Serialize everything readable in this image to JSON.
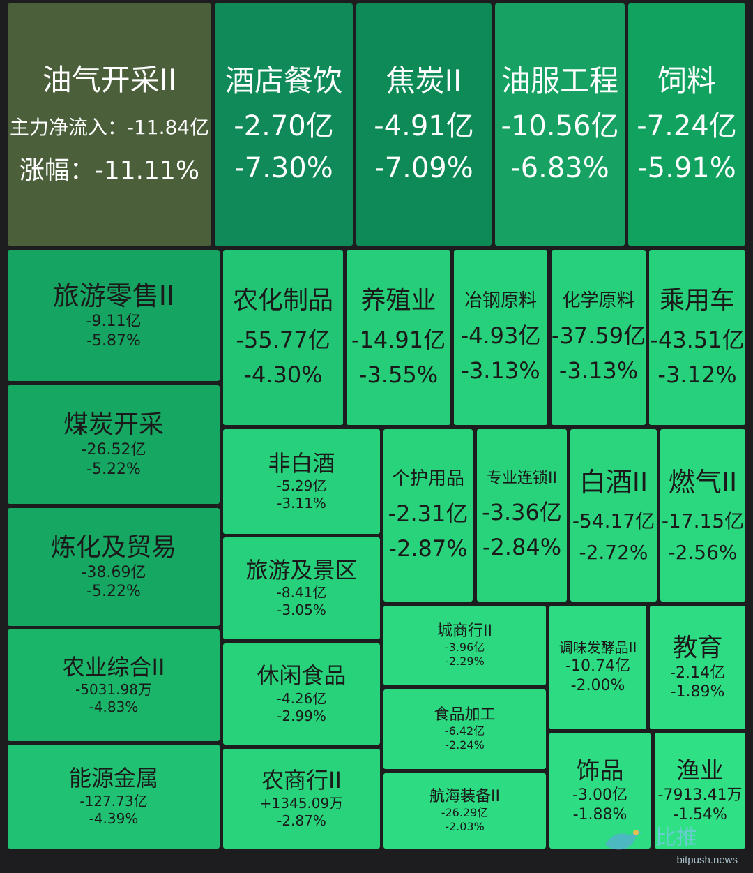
{
  "chart_data": {
    "type": "treemap",
    "cells": [
      {
        "name": "油气开采II",
        "flow_prefix": "主力净流入：",
        "flow": "-11.84亿",
        "change_prefix": "涨幅：",
        "change": "-11.11%",
        "color": "#4a5f3a"
      },
      {
        "name": "酒店餐饮",
        "flow": "-2.70亿",
        "change": "-7.30%",
        "color": "#0f8a58"
      },
      {
        "name": "焦炭II",
        "flow": "-4.91亿",
        "change": "-7.09%",
        "color": "#0e8a57"
      },
      {
        "name": "油服工程",
        "flow": "-10.56亿",
        "change": "-6.83%",
        "color": "#17a163"
      },
      {
        "name": "饲料",
        "flow": "-7.24亿",
        "change": "-5.91%",
        "color": "#12a260"
      },
      {
        "name": "旅游零售II",
        "flow": "-9.11亿",
        "change": "-5.87%",
        "color": "#15a461"
      },
      {
        "name": "农化制品",
        "flow": "-55.77亿",
        "change": "-4.30%",
        "color": "#22c574"
      },
      {
        "name": "养殖业",
        "flow": "-14.91亿",
        "change": "-3.55%",
        "color": "#26ce79"
      },
      {
        "name": "冶钢原料",
        "flow": "-4.93亿",
        "change": "-3.13%",
        "color": "#27d17b"
      },
      {
        "name": "化学原料",
        "flow": "-37.59亿",
        "change": "-3.13%",
        "color": "#27d17b"
      },
      {
        "name": "乘用车",
        "flow": "-43.51亿",
        "change": "-3.12%",
        "color": "#27d17b"
      },
      {
        "name": "煤炭开采",
        "flow": "-26.52亿",
        "change": "-5.22%",
        "color": "#16a763"
      },
      {
        "name": "非白酒",
        "flow": "-5.29亿",
        "change": "-3.11%",
        "color": "#27d17b"
      },
      {
        "name": "个护用品",
        "flow": "-2.31亿",
        "change": "-2.87%",
        "color": "#29d37c"
      },
      {
        "name": "专业连锁II",
        "flow": "-3.36亿",
        "change": "-2.84%",
        "color": "#29d37c"
      },
      {
        "name": "白酒II",
        "flow": "-54.17亿",
        "change": "-2.72%",
        "color": "#2ad57e"
      },
      {
        "name": "燃气II",
        "flow": "-17.15亿",
        "change": "-2.56%",
        "color": "#2bd77f"
      },
      {
        "name": "炼化及贸易",
        "flow": "-38.69亿",
        "change": "-5.22%",
        "color": "#16a763"
      },
      {
        "name": "旅游及景区",
        "flow": "-8.41亿",
        "change": "-3.05%",
        "color": "#27d17b"
      },
      {
        "name": "城商行II",
        "flow": "-3.96亿",
        "change": "-2.29%",
        "color": "#2cd981"
      },
      {
        "name": "调味发酵品II",
        "flow": "-10.74亿",
        "change": "-2.00%",
        "color": "#2ddb82"
      },
      {
        "name": "教育",
        "flow": "-2.14亿",
        "change": "-1.89%",
        "color": "#2edd83"
      },
      {
        "name": "农业综合II",
        "flow": "-5031.98万",
        "change": "-4.83%",
        "color": "#1bb569"
      },
      {
        "name": "休闲食品",
        "flow": "-4.26亿",
        "change": "-2.99%",
        "color": "#28d27b"
      },
      {
        "name": "食品加工",
        "flow": "-6.42亿",
        "change": "-2.24%",
        "color": "#2cd981"
      },
      {
        "name": "能源金属",
        "flow": "-127.73亿",
        "change": "-4.39%",
        "color": "#20c172"
      },
      {
        "name": "农商行II",
        "flow": "+1345.09万",
        "change": "-2.87%",
        "color": "#29d37c"
      },
      {
        "name": "航海装备II",
        "flow": "-26.29亿",
        "change": "-2.03%",
        "color": "#2ddb82"
      },
      {
        "name": "饰品",
        "flow": "-3.00亿",
        "change": "-1.88%",
        "color": "#2edd83"
      },
      {
        "name": "渔业",
        "flow": "-7913.41万",
        "change": "-1.54%",
        "color": "#30e085"
      }
    ]
  },
  "watermark": {
    "cn": "比推",
    "en": "bitpush.news",
    "icon": "bird-icon"
  }
}
